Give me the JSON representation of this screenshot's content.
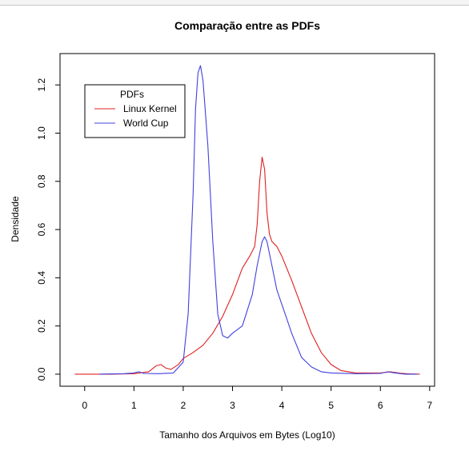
{
  "chart_data": {
    "type": "line",
    "title": "Comparação entre as PDFs",
    "xlabel": "Tamanho dos Arquivos em Bytes (Log10)",
    "ylabel": "Densidade",
    "xlim": [
      -0.5,
      7.1
    ],
    "ylim": [
      -0.05,
      1.33
    ],
    "xticks": [
      0,
      1,
      2,
      3,
      4,
      5,
      6,
      7
    ],
    "yticks": [
      0.0,
      0.2,
      0.4,
      0.6,
      0.8,
      1.0,
      1.2
    ],
    "ytick_labels": [
      "0.0",
      "0.2",
      "0.4",
      "0.6",
      "0.8",
      "1.0",
      "1.2"
    ],
    "grid": false,
    "legend": {
      "title": "PDFs",
      "position": "top-left"
    },
    "series": [
      {
        "name": "Linux Kernel",
        "color": "#e02020",
        "x": [
          -0.2,
          0.5,
          1.0,
          1.3,
          1.45,
          1.55,
          1.65,
          1.75,
          1.9,
          2.0,
          2.2,
          2.4,
          2.6,
          2.8,
          3.0,
          3.2,
          3.35,
          3.45,
          3.5,
          3.55,
          3.6,
          3.65,
          3.7,
          3.75,
          3.8,
          3.9,
          4.0,
          4.2,
          4.4,
          4.6,
          4.8,
          5.0,
          5.2,
          5.5,
          6.0,
          6.2,
          6.4,
          6.6,
          6.8
        ],
        "y": [
          0.0,
          0.0,
          0.002,
          0.01,
          0.035,
          0.04,
          0.025,
          0.02,
          0.04,
          0.065,
          0.09,
          0.12,
          0.17,
          0.24,
          0.33,
          0.44,
          0.49,
          0.53,
          0.62,
          0.8,
          0.9,
          0.85,
          0.67,
          0.58,
          0.55,
          0.53,
          0.49,
          0.39,
          0.28,
          0.17,
          0.09,
          0.04,
          0.015,
          0.005,
          0.005,
          0.01,
          0.004,
          0.001,
          0.0
        ]
      },
      {
        "name": "World Cup",
        "color": "#4040e0",
        "x": [
          0.3,
          0.8,
          1.0,
          1.1,
          1.2,
          1.5,
          1.8,
          2.0,
          2.1,
          2.2,
          2.25,
          2.3,
          2.35,
          2.4,
          2.5,
          2.6,
          2.7,
          2.8,
          2.9,
          3.0,
          3.2,
          3.4,
          3.5,
          3.6,
          3.65,
          3.7,
          3.8,
          3.9,
          4.0,
          4.1,
          4.2,
          4.3,
          4.4,
          4.6,
          4.8,
          5.0,
          5.5,
          6.0,
          6.15,
          6.3,
          6.5,
          6.75
        ],
        "y": [
          0.0,
          0.002,
          0.005,
          0.01,
          0.003,
          0.002,
          0.005,
          0.05,
          0.25,
          0.75,
          1.1,
          1.25,
          1.28,
          1.22,
          0.95,
          0.55,
          0.25,
          0.16,
          0.15,
          0.17,
          0.2,
          0.33,
          0.45,
          0.55,
          0.57,
          0.55,
          0.45,
          0.35,
          0.29,
          0.23,
          0.17,
          0.12,
          0.07,
          0.03,
          0.01,
          0.005,
          0.002,
          0.003,
          0.01,
          0.005,
          0.0,
          0.0
        ]
      }
    ]
  }
}
